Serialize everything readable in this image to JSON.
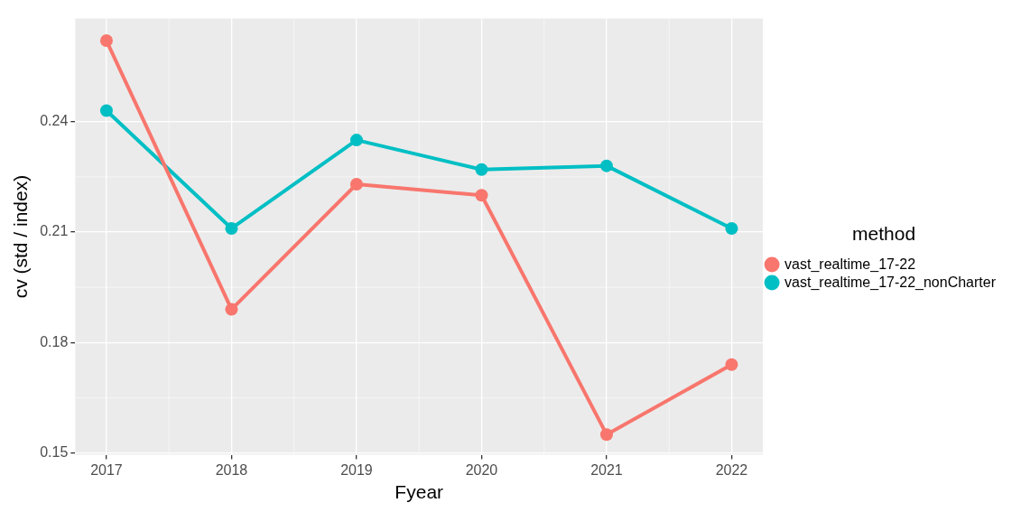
{
  "chart_data": {
    "type": "line",
    "xlabel": "Fyear",
    "ylabel": "cv (std / index)",
    "legend_title": "method",
    "x": [
      2017,
      2018,
      2019,
      2020,
      2021,
      2022
    ],
    "series": [
      {
        "name": "vast_realtime_17-22",
        "color": "#f8766d",
        "values": [
          0.262,
          0.189,
          0.223,
          0.22,
          0.155,
          0.174
        ]
      },
      {
        "name": "vast_realtime_17-22_nonCharter",
        "color": "#00bfc4",
        "values": [
          0.243,
          0.211,
          0.235,
          0.227,
          0.228,
          0.211
        ]
      }
    ],
    "xlim": [
      2016.75,
      2022.25
    ],
    "xticks": [
      2017,
      2018,
      2019,
      2020,
      2021,
      2022
    ],
    "ylim": [
      0.1495,
      0.268
    ],
    "yticks": [
      0.15,
      0.18,
      0.21,
      0.24
    ],
    "grid": true,
    "legend": "right",
    "marker": "circle",
    "line_style": "solid"
  }
}
